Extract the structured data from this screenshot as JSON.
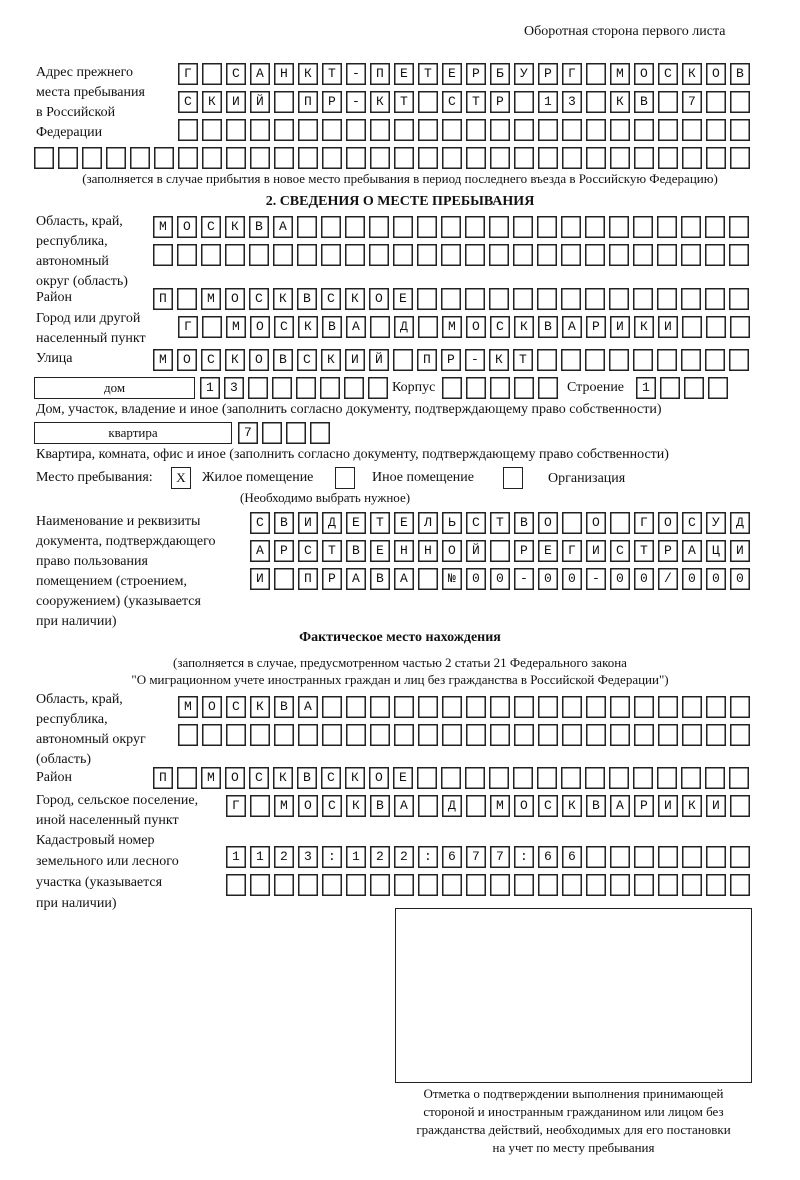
{
  "header": "Оборотная сторона первого листа",
  "prev_address": {
    "label": [
      "Адрес прежнего",
      "места пребывания",
      "в Российской",
      "Федерации"
    ],
    "rows": [
      "Г САНКТ-ПЕТЕРБУРГ МОСКОВ",
      "СКИЙ ПР-КТ СТР 13 КВ 7  ",
      "                        ",
      "                              "
    ],
    "note": "(заполняется в случае прибытия в новое место пребывания в период последнего въезда в Российскую Федерацию)"
  },
  "section2_title": "2. СВЕДЕНИЯ О МЕСТЕ ПРЕБЫВАНИЯ",
  "stay": {
    "region_label": [
      "Область, край,",
      "республика,",
      "автономный",
      "округ (область)"
    ],
    "region_rows": [
      "МОСКВА                   ",
      "                         "
    ],
    "district_label": "Район",
    "district": "П МОСКВСКОЕ              ",
    "city_label": [
      "Город или другой",
      "населенный пункт"
    ],
    "city": "Г МОСКВА Д МОСКВАРИКИ   ",
    "street_label": "Улица",
    "street": "МОСКОВСКИЙ ПР-КТ         ",
    "house_type": "дом",
    "house": "13      ",
    "korpus_label": "Корпус",
    "korpus": "     ",
    "building_label": "Строение",
    "building": "1   ",
    "house_note": "Дом, участок, владение и иное (заполнить согласно документу, подтверждающему право собственности)",
    "flat_type": "квартира",
    "flat": "7   ",
    "flat_note": "Квартира, комната, офис и иное (заполнить согласно документу, подтверждающему право собственности)",
    "place_label": "Место пребывания:",
    "place_options": [
      {
        "mark": "X",
        "label": "Жилое помещение"
      },
      {
        "mark": "",
        "label": "Иное помещение"
      },
      {
        "mark": "",
        "label": "Организация"
      }
    ],
    "place_note": "(Необходимо выбрать нужное)",
    "doc_label": [
      "Наименование и реквизиты",
      "документа, подтверждающего",
      "право пользования",
      "помещением (строением,",
      "сооружением) (указывается",
      "при наличии)"
    ],
    "doc_rows": [
      "СВИДЕТЕЛЬСТВО О ГОСУД",
      "АРСТВЕННОЙ РЕГИСТРАЦИ",
      "И ПРАВА №00-00-00/000"
    ]
  },
  "actual": {
    "title": "Фактическое место нахождения",
    "note": [
      "(заполняется в случае, предусмотренном частью 2 статьи 21 Федерального закона",
      "\"О миграционном учете иностранных граждан и лиц без гражданства в Российской Федерации\")"
    ],
    "region_label": [
      "Область, край,",
      "республика,",
      "автономный округ",
      "(область)"
    ],
    "region_rows": [
      "МОСКВА                  ",
      "                        "
    ],
    "district_label": "Район",
    "district": "П МОСКВСКОЕ              ",
    "city_label": [
      "Город, сельское поселение,",
      "иной населенный пункт"
    ],
    "city": "Г МОСКВА Д МОСКВАРИКИ ",
    "cadastral_label": [
      "Кадастровый номер",
      "земельного или лесного",
      "участка (указывается",
      "при наличии)"
    ],
    "cadastral_rows": [
      "1123:122:677:66       ",
      "                      "
    ]
  },
  "stamp_caption": [
    "Отметка о подтверждении выполнения принимающей",
    "стороной и иностранным гражданином или лицом без",
    "гражданства действий, необходимых для его постановки",
    "на учет по месту пребывания"
  ]
}
